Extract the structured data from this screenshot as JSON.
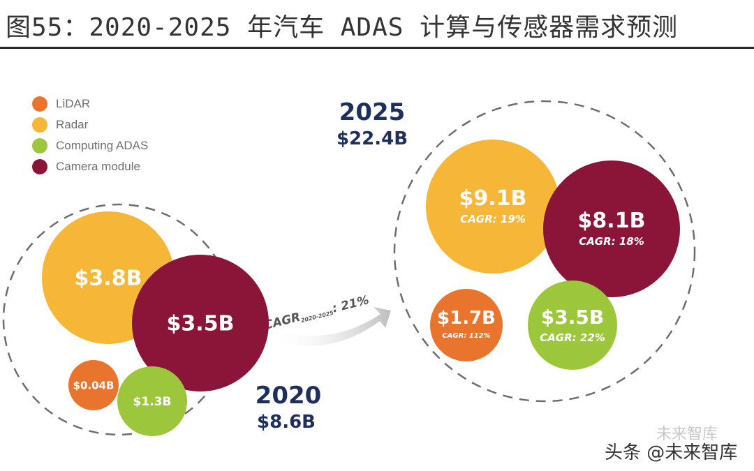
{
  "title": "图55：2020-2025 年汽车 ADAS 计算与传感器需求预测",
  "legend": [
    {
      "label": "LiDAR",
      "color": "#e8742e"
    },
    {
      "label": "Radar",
      "color": "#f6b637"
    },
    {
      "label": "Computing ADAS",
      "color": "#9cc63b"
    },
    {
      "label": "Camera module",
      "color": "#8a1538"
    }
  ],
  "chart_data": {
    "type": "bubble",
    "unit": "$B",
    "groups": [
      {
        "year": "2020",
        "total": "$8.6B",
        "total_value": 8.6,
        "items": [
          {
            "series": "Radar",
            "value": 3.8,
            "label": "$3.8B"
          },
          {
            "series": "Camera module",
            "value": 3.5,
            "label": "$3.5B"
          },
          {
            "series": "LiDAR",
            "value": 0.04,
            "label": "$0.04B"
          },
          {
            "series": "Computing ADAS",
            "value": 1.3,
            "label": "$1.3B"
          }
        ]
      },
      {
        "year": "2025",
        "total": "$22.4B",
        "total_value": 22.4,
        "items": [
          {
            "series": "Radar",
            "value": 9.1,
            "label": "$9.1B",
            "cagr": "CAGR: 19%"
          },
          {
            "series": "Camera module",
            "value": 8.1,
            "label": "$8.1B",
            "cagr": "CAGR: 18%"
          },
          {
            "series": "LiDAR",
            "value": 1.7,
            "label": "$1.7B",
            "cagr": "CAGR: 112%"
          },
          {
            "series": "Computing ADAS",
            "value": 3.5,
            "label": "$3.5B",
            "cagr": "CAGR: 22%"
          }
        ]
      }
    ],
    "overall_cagr": {
      "label": "CAGR",
      "subscript": "2020-2025",
      "value": ": 21%"
    }
  },
  "colors": {
    "LiDAR": "#e8742e",
    "Radar": "#f6b637",
    "Computing ADAS": "#9cc63b",
    "Camera module": "#8a1538",
    "group_text": "#1f2f5c",
    "dashed_circle": "#6d6d6d"
  },
  "watermark": {
    "text": "头条 @未来智库",
    "ghost": "未来智库"
  }
}
